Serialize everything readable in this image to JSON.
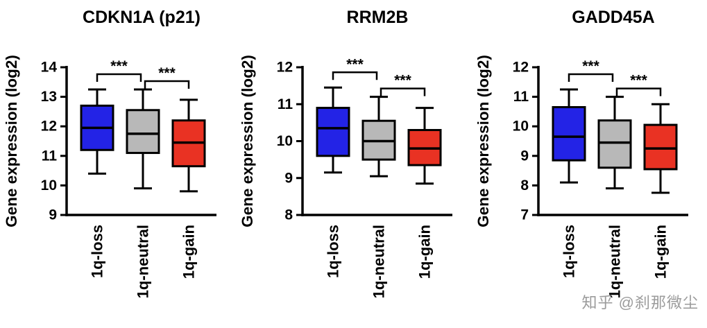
{
  "watermark": {
    "text": "知乎 @刹那微尘"
  },
  "chart_data": [
    {
      "type": "box",
      "title": "CDKN1A (p21)",
      "ylabel": "Gene expression (log2)",
      "ylim": [
        9,
        14
      ],
      "yticks": [
        9,
        10,
        11,
        12,
        13,
        14
      ],
      "categories": [
        "1q-loss",
        "1q-neutral",
        "1q-gain"
      ],
      "series": [
        {
          "name": "1q-loss",
          "color": "#2323e6",
          "whisker_low": 10.4,
          "q1": 11.2,
          "median": 11.95,
          "q3": 12.7,
          "whisker_high": 13.25
        },
        {
          "name": "1q-neutral",
          "color": "#b8b8b8",
          "whisker_low": 9.9,
          "q1": 11.1,
          "median": 11.75,
          "q3": 12.55,
          "whisker_high": 13.25
        },
        {
          "name": "1q-gain",
          "color": "#e93223",
          "whisker_low": 9.8,
          "q1": 10.65,
          "median": 11.45,
          "q3": 12.2,
          "whisker_high": 12.9
        }
      ],
      "significance": [
        {
          "between": [
            0,
            1
          ],
          "label": "***"
        },
        {
          "between": [
            1,
            2
          ],
          "label": "***"
        }
      ]
    },
    {
      "type": "box",
      "title": "RRM2B",
      "ylabel": "Gene expression (log2)",
      "ylim": [
        8,
        12
      ],
      "yticks": [
        8,
        9,
        10,
        11,
        12
      ],
      "categories": [
        "1q-loss",
        "1q-neutral",
        "1q-gain"
      ],
      "series": [
        {
          "name": "1q-loss",
          "color": "#2323e6",
          "whisker_low": 9.15,
          "q1": 9.6,
          "median": 10.35,
          "q3": 10.9,
          "whisker_high": 11.45
        },
        {
          "name": "1q-neutral",
          "color": "#b8b8b8",
          "whisker_low": 9.05,
          "q1": 9.5,
          "median": 10.0,
          "q3": 10.55,
          "whisker_high": 11.2
        },
        {
          "name": "1q-gain",
          "color": "#e93223",
          "whisker_low": 8.85,
          "q1": 9.35,
          "median": 9.8,
          "q3": 10.3,
          "whisker_high": 10.9
        }
      ],
      "significance": [
        {
          "between": [
            0,
            1
          ],
          "label": "***"
        },
        {
          "between": [
            1,
            2
          ],
          "label": "***"
        }
      ]
    },
    {
      "type": "box",
      "title": "GADD45A",
      "ylabel": "Gene expression (log2)",
      "ylim": [
        7,
        12
      ],
      "yticks": [
        7,
        8,
        9,
        10,
        11,
        12
      ],
      "categories": [
        "1q-loss",
        "1q-neutral",
        "1q-gain"
      ],
      "series": [
        {
          "name": "1q-loss",
          "color": "#2323e6",
          "whisker_low": 8.1,
          "q1": 8.85,
          "median": 9.65,
          "q3": 10.65,
          "whisker_high": 11.25
        },
        {
          "name": "1q-neutral",
          "color": "#b8b8b8",
          "whisker_low": 7.9,
          "q1": 8.6,
          "median": 9.45,
          "q3": 10.2,
          "whisker_high": 11.0
        },
        {
          "name": "1q-gain",
          "color": "#e93223",
          "whisker_low": 7.75,
          "q1": 8.55,
          "median": 9.25,
          "q3": 10.05,
          "whisker_high": 10.75
        }
      ],
      "significance": [
        {
          "between": [
            0,
            1
          ],
          "label": "***"
        },
        {
          "between": [
            1,
            2
          ],
          "label": "***"
        }
      ]
    }
  ]
}
